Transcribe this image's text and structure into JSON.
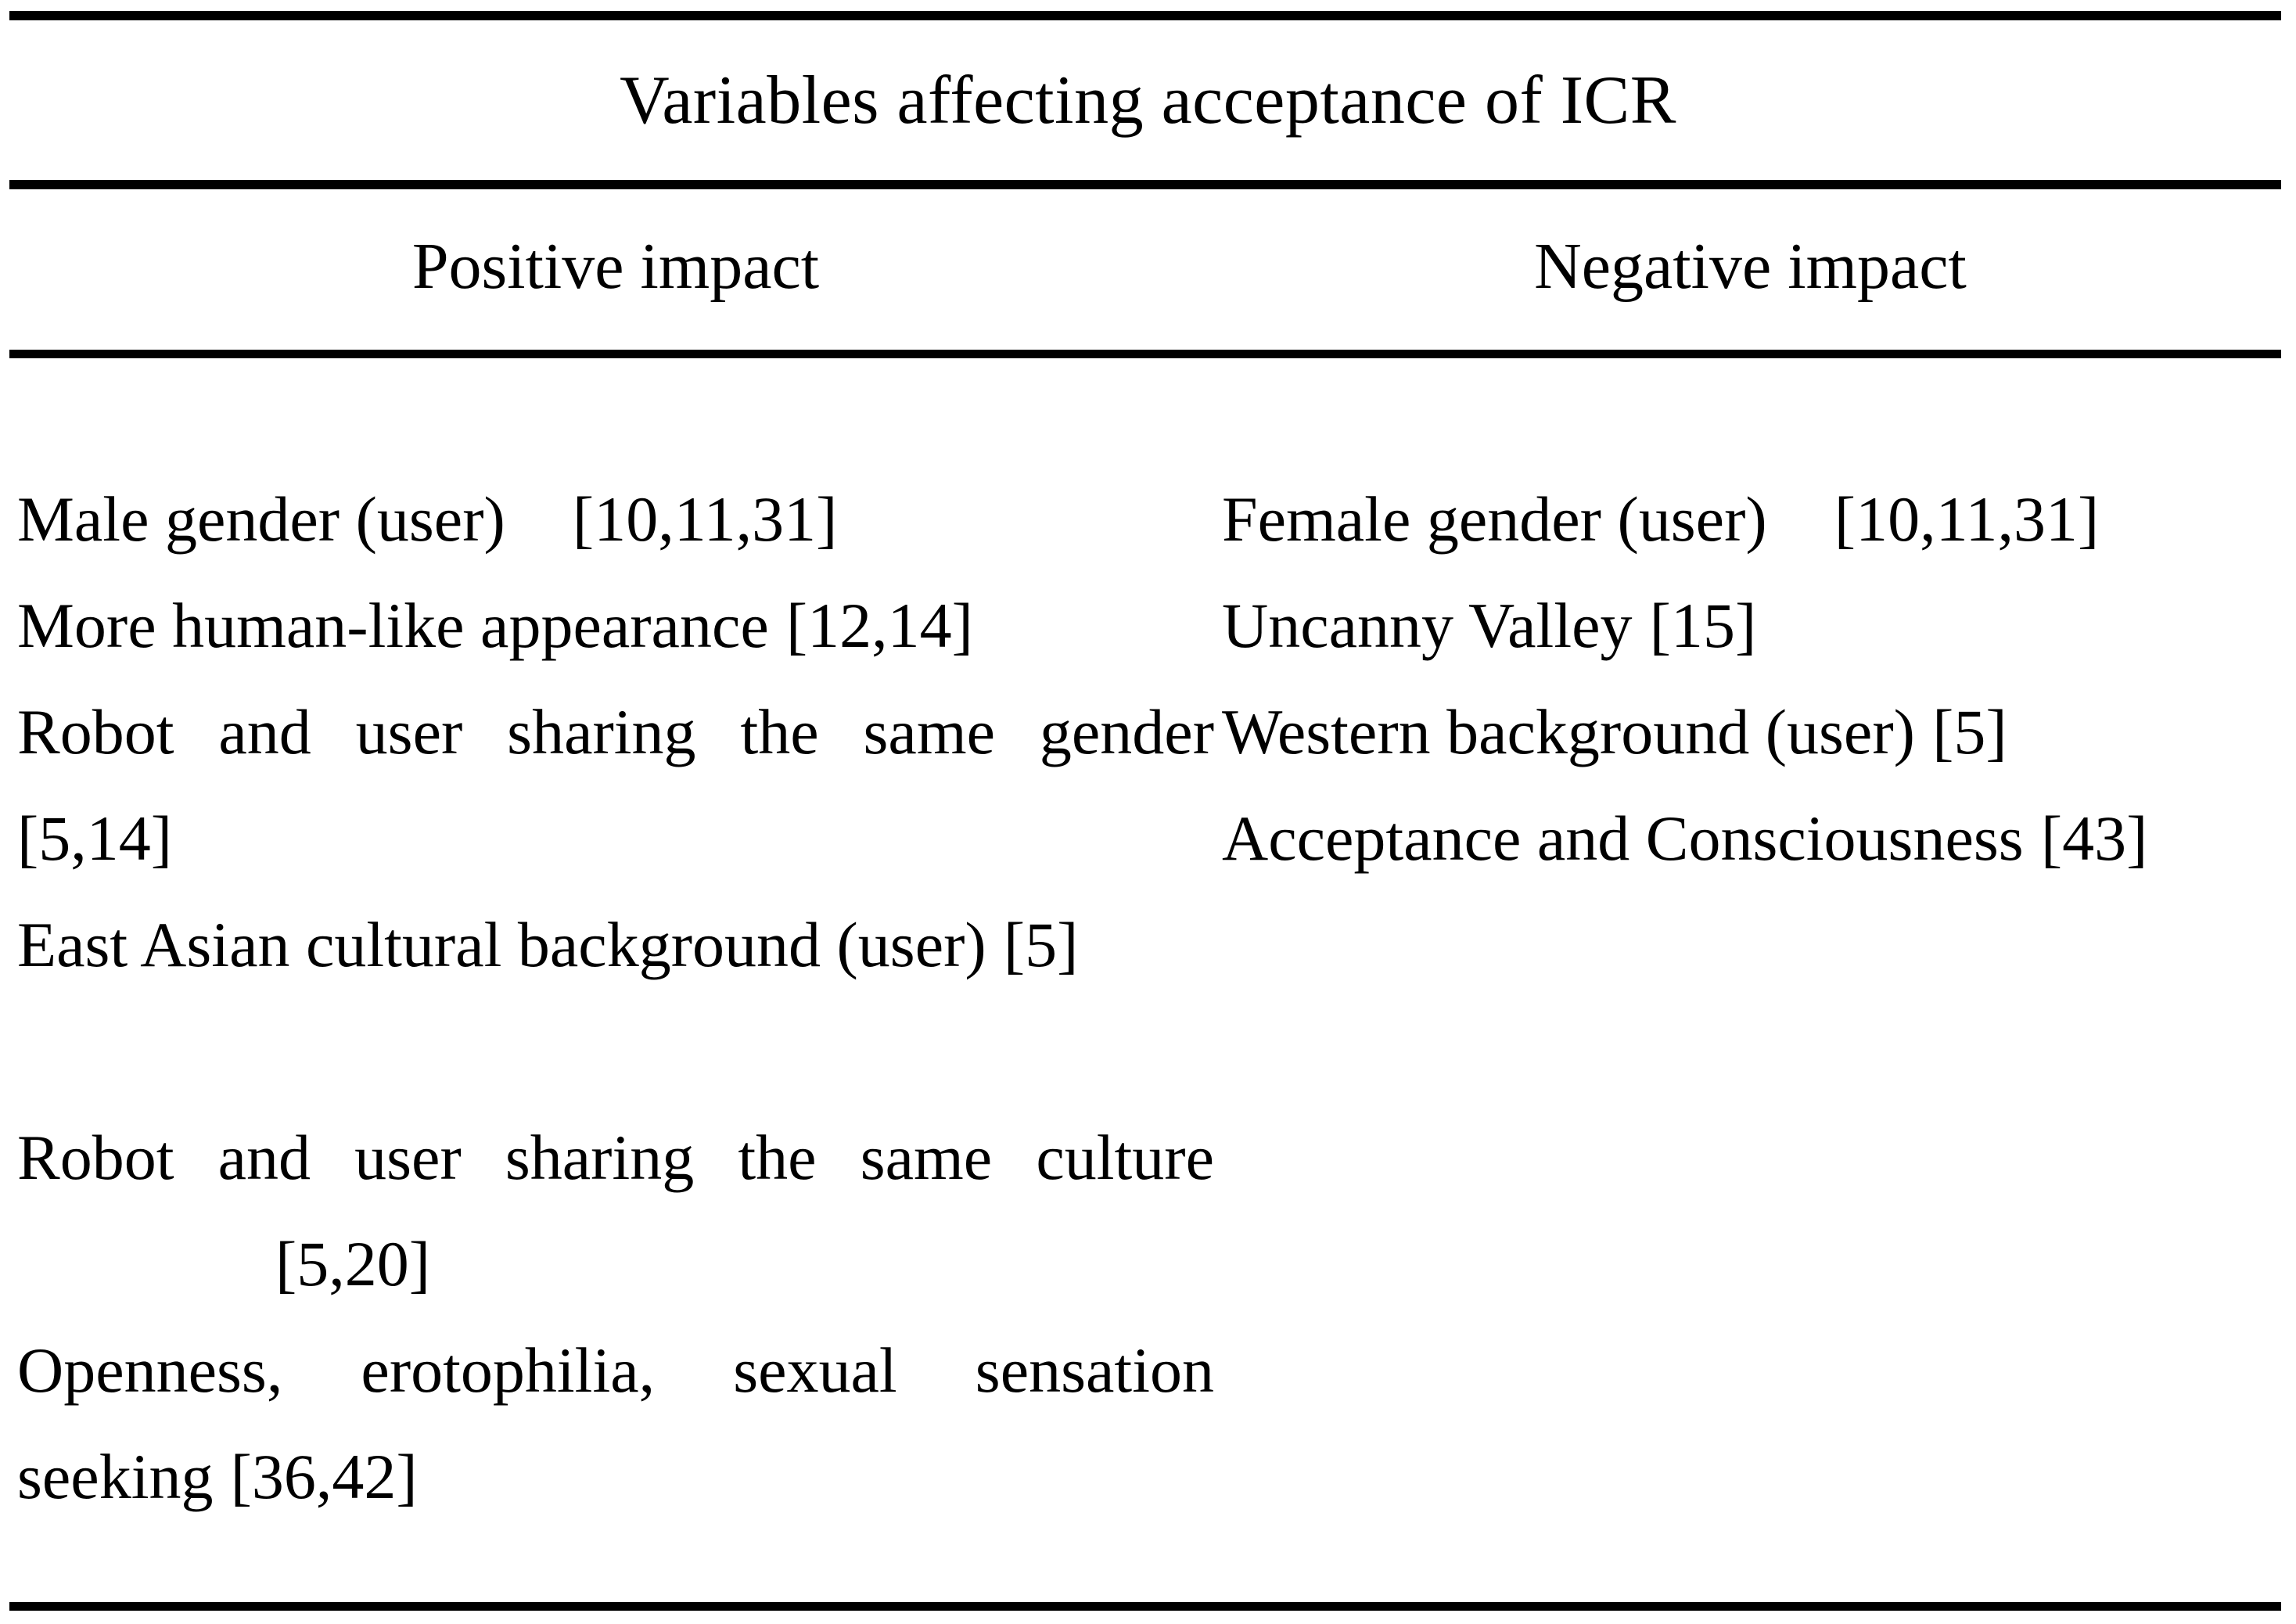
{
  "table": {
    "title": "Variables affecting acceptance of ICR",
    "headers": {
      "positive": "Positive impact",
      "negative": "Negative impact"
    },
    "positive_lines": [
      {
        "label": "Male gender (user)",
        "ref": "[10,11,31]"
      },
      {
        "label": "More human-like appearance",
        "ref": "[12,14]"
      },
      {
        "label": "Robot and user sharing the same gender",
        "ref": ""
      },
      {
        "label": "[5,14]",
        "ref": ""
      },
      {
        "label": "East Asian cultural background (user)",
        "ref": "[5]"
      },
      {
        "label": "",
        "ref": ""
      },
      {
        "label": "Robot and user sharing the same culture",
        "ref": ""
      },
      {
        "label": "[5,20]",
        "ref": ""
      },
      {
        "label": "Openness, erotophilia, sexual sensation",
        "ref": ""
      },
      {
        "label": "seeking",
        "ref": "[36,42]"
      }
    ],
    "negative_lines": [
      {
        "label": "Female gender (user)",
        "ref": "[10,11,31]"
      },
      {
        "label": "Uncanny Valley",
        "ref": "[15]"
      },
      {
        "label": "Western background (user)",
        "ref": "[5]"
      },
      {
        "label": "Acceptance and Consciousness",
        "ref": "[43]"
      }
    ]
  },
  "colors": {
    "text": "#000000",
    "background": "#ffffff",
    "rule": "#000000"
  }
}
